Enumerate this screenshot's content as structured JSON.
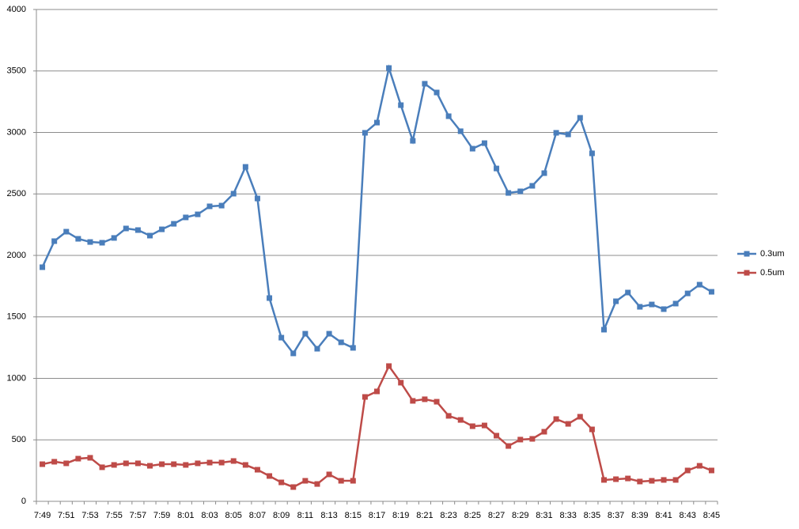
{
  "chart_data": {
    "type": "line",
    "categories": [
      "7:49",
      null,
      "7:51",
      null,
      "7:53",
      null,
      "7:55",
      null,
      "7:57",
      null,
      "7:59",
      null,
      "8:01",
      null,
      "8:03",
      null,
      "8:05",
      null,
      "8:07",
      null,
      "8:09",
      null,
      "8:11",
      null,
      "8:13",
      null,
      "8:15",
      null,
      "8:17",
      null,
      "8:19",
      null,
      "8:21",
      null,
      "8:23",
      null,
      "8:25",
      null,
      "8:27",
      null,
      "8:29",
      null,
      "8:31",
      null,
      "8:33",
      null,
      "8:35",
      null,
      "8:37",
      null,
      "8:39",
      null,
      "8:41",
      null,
      "8:43",
      null,
      "8:45"
    ],
    "series": [
      {
        "name": "0.3um",
        "color": "#4a7ebb",
        "values": [
          1904,
          2116,
          2193,
          2135,
          2109,
          2103,
          2142,
          2219,
          2206,
          2161,
          2212,
          2257,
          2309,
          2334,
          2399,
          2405,
          2502,
          2720,
          2463,
          1653,
          1331,
          1203,
          1363,
          1241,
          1363,
          1293,
          1248,
          2997,
          3080,
          3524,
          3222,
          2932,
          3396,
          3325,
          3132,
          3010,
          2868,
          2913,
          2707,
          2508,
          2521,
          2566,
          2669,
          2997,
          2984,
          3119,
          2830,
          1396,
          1627,
          1698,
          1582,
          1601,
          1563,
          1608,
          1691,
          1762,
          1704
        ]
      },
      {
        "name": "0.5um",
        "color": "#be4b48",
        "values": [
          302,
          322,
          309,
          347,
          354,
          277,
          296,
          309,
          309,
          289,
          302,
          302,
          296,
          309,
          315,
          315,
          328,
          296,
          257,
          206,
          154,
          116,
          167,
          141,
          219,
          167,
          167,
          849,
          894,
          1100,
          965,
          817,
          830,
          810,
          695,
          662,
          611,
          617,
          534,
          450,
          502,
          508,
          566,
          669,
          630,
          688,
          585,
          174,
          180,
          186,
          161,
          167,
          174,
          174,
          251,
          289,
          251
        ]
      }
    ],
    "ylim": [
      0,
      4000
    ],
    "yticks": [
      0,
      500,
      1000,
      1500,
      2000,
      2500,
      3000,
      3500,
      4000
    ],
    "grid": true,
    "legend": "right"
  }
}
